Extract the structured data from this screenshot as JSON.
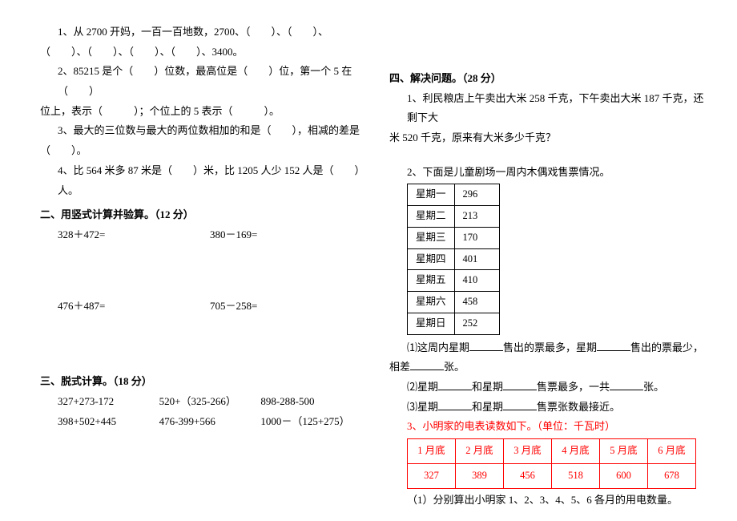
{
  "left": {
    "q1_a": "1、从 2700 开妈，一百一百地数，2700、（　　）、（　　）、",
    "q1_b": "（　　）、（　　）、（　　）、（　　）、3400。",
    "q2_a": "2、85215 是个（　　）位数，最高位是（　　）位，第一个 5 在（　　）",
    "q2_b": "位上，表示（　　　）；个位上的 5 表示（　　　）。",
    "q3_a": "3、最大的三位数与最大的两位数相加的和是（　　），相减的差是",
    "q3_b": "（　　）。",
    "q4": "4、比 564 米多 87 米是（　　）米，比 1205 人少 152 人是（　　）人。",
    "sec2": "二、用竖式计算并验算。（12 分）",
    "p1": "328＋472=",
    "p2": "380－169=",
    "p3": "476＋487=",
    "p4": "705－258=",
    "sec3": "三、脱式计算。（18 分）",
    "c1": "327+273-172",
    "c2": "520+（325-266）",
    "c3": "898-288-500",
    "c4": "398+502+445",
    "c5": "476-399+566",
    "c6": "1000－（125+275）"
  },
  "right": {
    "sec4": "四、解决问题。（28 分）",
    "q1_a": "1、利民粮店上午卖出大米 258 千克，下午卖出大米 187 千克，还剩下大",
    "q1_b": "米 520 千克，原来有大米多少千克？",
    "q2_intro": "2、下面是儿童剧场一周内木偶戏售票情况。",
    "puppet": {
      "rows": [
        [
          "星期一",
          "296"
        ],
        [
          "星期二",
          "213"
        ],
        [
          "星期三",
          "170"
        ],
        [
          "星期四",
          "401"
        ],
        [
          "星期五",
          "410"
        ],
        [
          "星期六",
          "458"
        ],
        [
          "星期日",
          "252"
        ]
      ]
    },
    "sub1_a": "⑴这周内星期",
    "sub1_b": "售出的票最多，星期",
    "sub1_c": "售出的票最少，",
    "sub1_d": "相差",
    "sub1_e": "张。",
    "sub2_a": "⑵星期",
    "sub2_b": "和星期",
    "sub2_c": "售票最多，一共",
    "sub2_d": "张。",
    "sub3_a": "⑶星期",
    "sub3_b": "和星期",
    "sub3_c": "售票张数最接近。",
    "q3_intro": "3、小明家的电表读数如下。（单位：千瓦时）",
    "meter": {
      "headers": [
        "1 月底",
        "2 月底",
        "3 月底",
        "4 月底",
        "5 月底",
        "6 月底"
      ],
      "values": [
        "327",
        "389",
        "456",
        "518",
        "600",
        "678"
      ]
    },
    "q3_sub": "（1）分别算出小明家 1、2、3、4、5、6 各月的用电数量。"
  },
  "blanks": {
    "w50": "50px",
    "w42": "42px"
  }
}
